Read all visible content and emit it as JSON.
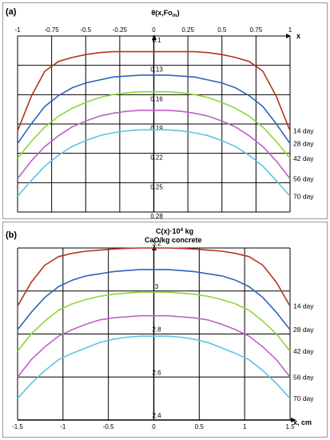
{
  "chart_data": [
    {
      "panel": "(a)",
      "type": "line",
      "title": "θ(x,Fo",
      "title_sub": "m",
      "title_close": ")",
      "xlabel": "x",
      "x_ticks": [
        "-1",
        "-0.75",
        "-0.5",
        "-0.25",
        "0",
        "0.25",
        "0.5",
        "0.75",
        "1"
      ],
      "xlim": [
        -1,
        1
      ],
      "y_ticks": [
        "0.1",
        "0.13",
        "0.16",
        "0.19",
        "0.22",
        "0.25",
        "0.28"
      ],
      "ylim": [
        0.1,
        0.28
      ],
      "y_inverted": true,
      "x_axis_position": "top",
      "x": [
        -1,
        -0.9,
        -0.8,
        -0.7,
        -0.6,
        -0.5,
        -0.4,
        -0.3,
        -0.2,
        -0.1,
        0,
        0.1,
        0.2,
        0.3,
        0.4,
        0.5,
        0.6,
        0.7,
        0.8,
        0.9,
        1
      ],
      "series": [
        {
          "name": "14 day",
          "color": "#b5341c",
          "values": [
            0.197,
            0.162,
            0.136,
            0.126,
            0.122,
            0.119,
            0.117,
            0.116,
            0.116,
            0.116,
            0.116,
            0.116,
            0.116,
            0.116,
            0.117,
            0.119,
            0.122,
            0.126,
            0.136,
            0.162,
            0.197
          ]
        },
        {
          "name": "28 day",
          "color": "#2e64be",
          "values": [
            0.21,
            0.19,
            0.172,
            0.161,
            0.153,
            0.148,
            0.145,
            0.142,
            0.141,
            0.14,
            0.14,
            0.14,
            0.141,
            0.142,
            0.145,
            0.148,
            0.153,
            0.161,
            0.172,
            0.19,
            0.21
          ]
        },
        {
          "name": "42 day",
          "color": "#8ed638",
          "values": [
            0.225,
            0.208,
            0.193,
            0.182,
            0.174,
            0.168,
            0.163,
            0.16,
            0.158,
            0.157,
            0.157,
            0.157,
            0.158,
            0.16,
            0.163,
            0.168,
            0.174,
            0.182,
            0.193,
            0.208,
            0.225
          ]
        },
        {
          "name": "56 day",
          "color": "#bd60c8",
          "values": [
            0.246,
            0.228,
            0.213,
            0.202,
            0.193,
            0.187,
            0.182,
            0.179,
            0.177,
            0.176,
            0.176,
            0.176,
            0.177,
            0.179,
            0.182,
            0.187,
            0.193,
            0.202,
            0.213,
            0.228,
            0.246
          ]
        },
        {
          "name": "70 day",
          "color": "#5cc4e3",
          "values": [
            0.264,
            0.248,
            0.233,
            0.222,
            0.213,
            0.207,
            0.202,
            0.199,
            0.197,
            0.196,
            0.196,
            0.196,
            0.197,
            0.199,
            0.202,
            0.207,
            0.213,
            0.222,
            0.233,
            0.248,
            0.264
          ]
        }
      ]
    },
    {
      "panel": "(b)",
      "type": "line",
      "title_line1": "C(x)·10",
      "title_sup": "4",
      "title_line1_tail": " kg",
      "title_line2": "CaO/kg concrete",
      "xlabel": "x, cm",
      "x_ticks": [
        "-1.5",
        "-1",
        "-0.5",
        "0",
        "0.5",
        "1",
        "1.5"
      ],
      "xlim": [
        -1.5,
        1.5
      ],
      "y_ticks": [
        "2.4",
        "2.6",
        "2.8",
        "3",
        "3.2"
      ],
      "ylim": [
        2.4,
        3.2
      ],
      "x_axis_position": "bottom",
      "x": [
        -1.5,
        -1.35,
        -1.2,
        -1.05,
        -0.9,
        -0.75,
        -0.6,
        -0.45,
        -0.3,
        -0.15,
        0,
        0.15,
        0.3,
        0.45,
        0.6,
        0.75,
        0.9,
        1.05,
        1.2,
        1.35,
        1.5
      ],
      "series": [
        {
          "name": "14 day",
          "color": "#b5341c",
          "values": [
            2.93,
            3.04,
            3.12,
            3.16,
            3.175,
            3.185,
            3.19,
            3.195,
            3.198,
            3.2,
            3.2,
            3.2,
            3.198,
            3.195,
            3.19,
            3.185,
            3.175,
            3.16,
            3.12,
            3.04,
            2.93
          ]
        },
        {
          "name": "28 day",
          "color": "#2e64be",
          "values": [
            2.82,
            2.9,
            2.97,
            3.02,
            3.05,
            3.07,
            3.08,
            3.09,
            3.095,
            3.1,
            3.1,
            3.1,
            3.095,
            3.09,
            3.08,
            3.07,
            3.05,
            3.02,
            2.97,
            2.9,
            2.82
          ]
        },
        {
          "name": "42 day",
          "color": "#8ed638",
          "values": [
            2.72,
            2.8,
            2.86,
            2.91,
            2.94,
            2.96,
            2.975,
            2.985,
            2.99,
            2.995,
            2.995,
            2.995,
            2.99,
            2.985,
            2.975,
            2.96,
            2.94,
            2.91,
            2.86,
            2.8,
            2.72
          ]
        },
        {
          "name": "56 day",
          "color": "#bd60c8",
          "values": [
            2.6,
            2.68,
            2.74,
            2.79,
            2.82,
            2.845,
            2.865,
            2.875,
            2.88,
            2.885,
            2.885,
            2.885,
            2.88,
            2.875,
            2.865,
            2.845,
            2.82,
            2.79,
            2.74,
            2.68,
            2.6
          ]
        },
        {
          "name": "70 day",
          "color": "#5cc4e3",
          "values": [
            2.5,
            2.57,
            2.63,
            2.68,
            2.71,
            2.735,
            2.76,
            2.775,
            2.785,
            2.79,
            2.79,
            2.79,
            2.785,
            2.775,
            2.76,
            2.735,
            2.71,
            2.68,
            2.63,
            2.57,
            2.5
          ]
        }
      ]
    }
  ]
}
